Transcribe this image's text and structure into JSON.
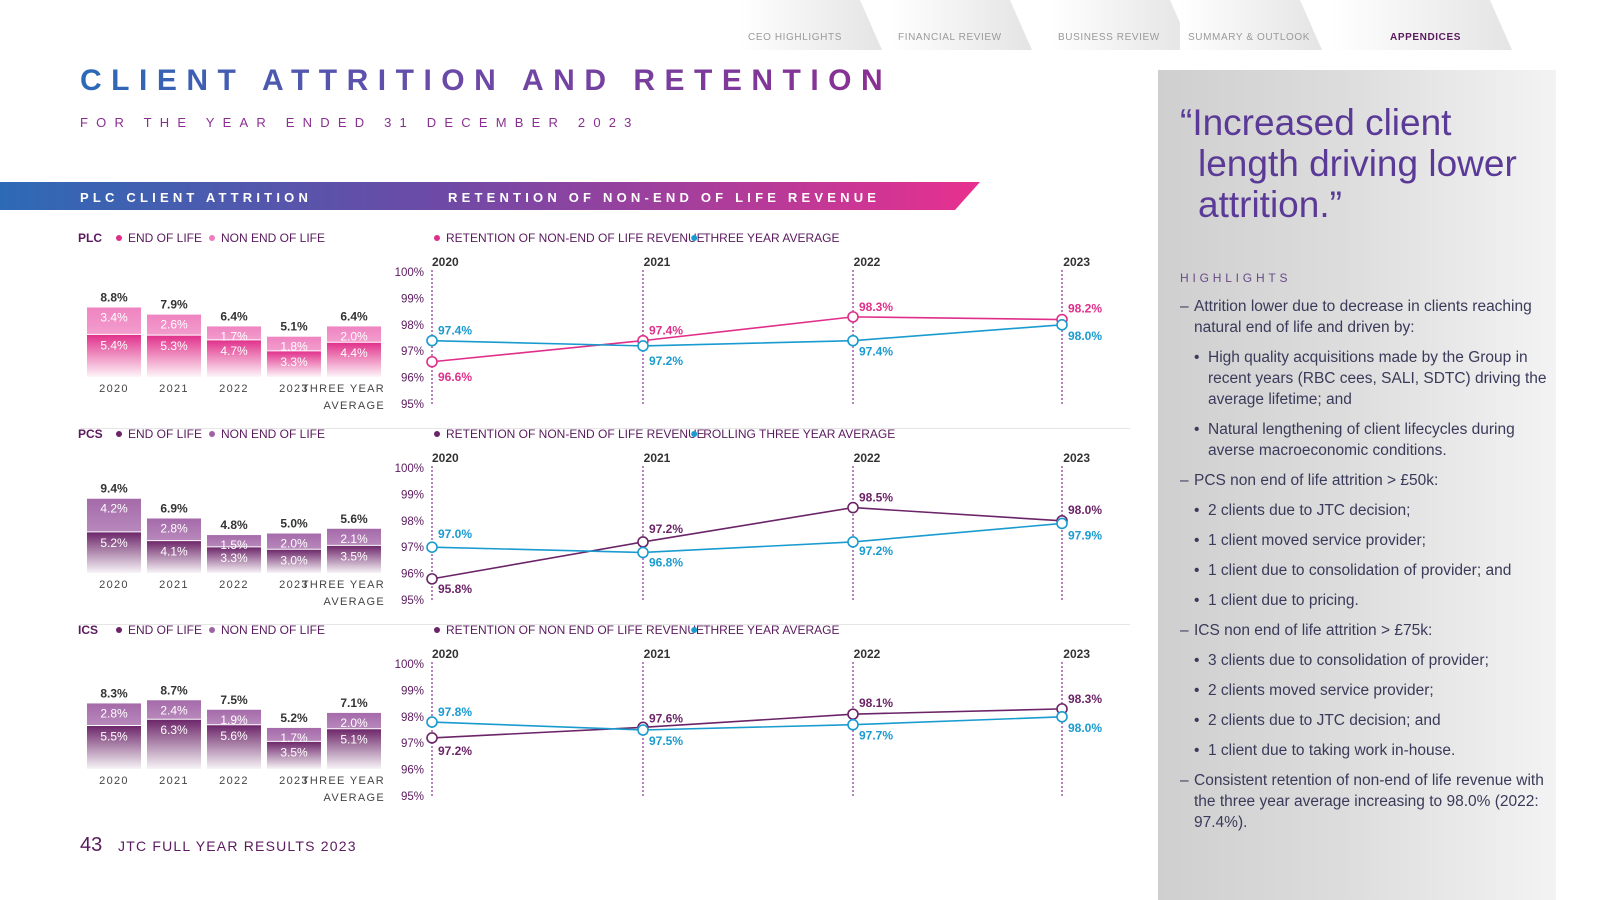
{
  "nav": {
    "tabs": [
      {
        "label": "CEO HIGHLIGHTS",
        "active": false
      },
      {
        "label": "FINANCIAL REVIEW",
        "active": false
      },
      {
        "label": "BUSINESS REVIEW",
        "active": false
      },
      {
        "label": "SUMMARY & OUTLOOK",
        "active": false
      },
      {
        "label": "APPENDICES",
        "active": true
      }
    ]
  },
  "page": {
    "title": "CLIENT ATTRITION AND RETENTION",
    "subtitle": "FOR THE YEAR ENDED 31 DECEMBER 2023",
    "banner_left": "PLC CLIENT ATTRITION",
    "banner_right": "RETENTION OF NON-END OF LIFE REVENUE",
    "footer_page": "43",
    "footer_text": "JTC FULL YEAR RESULTS 2023"
  },
  "colors": {
    "plc_eol": "#e02f8a",
    "plc_neol": "#ee7dbd",
    "pcs_eol": "#6b2468",
    "pcs_neol": "#a062a5",
    "ics_eol": "#6b2468",
    "ics_neol": "#a062a5",
    "average": "#1a9bd0"
  },
  "panel": {
    "quote": "“Increased client length driving lower attrition.”",
    "highlights_heading": "HIGHLIGHTS",
    "bullets": [
      {
        "level": 1,
        "text": "Attrition lower due to decrease in clients reaching natural end of life and driven by:"
      },
      {
        "level": 2,
        "text": "High quality acquisitions made by the Group in recent years (RBC cees, SALI, SDTC) driving the average lifetime; and"
      },
      {
        "level": 2,
        "text": "Natural lengthening of client lifecycles during averse macroeconomic conditions."
      },
      {
        "level": 1,
        "text": "PCS non end of life attrition > £50k:"
      },
      {
        "level": 2,
        "text": "2 clients due to JTC decision;"
      },
      {
        "level": 2,
        "text": "1 client moved service provider;"
      },
      {
        "level": 2,
        "text": "1 client due to consolidation of provider; and"
      },
      {
        "level": 2,
        "text": "1 client due to pricing."
      },
      {
        "level": 1,
        "text": "ICS non end of life attrition > £75k:"
      },
      {
        "level": 2,
        "text": "3 clients due to consolidation of provider;"
      },
      {
        "level": 2,
        "text": "2 clients moved service provider;"
      },
      {
        "level": 2,
        "text": "2 clients due to JTC decision; and"
      },
      {
        "level": 2,
        "text": "1 client due to taking work in-house."
      },
      {
        "level": 1,
        "text": "Consistent retention of non-end of life revenue with the three year average increasing to 98.0% (2022: 97.4%)."
      }
    ]
  },
  "chart_data": [
    {
      "id": "plc",
      "type": "bar",
      "stacked": true,
      "segment": "PLC",
      "legend": [
        "END OF LIFE",
        "NON END OF LIFE"
      ],
      "categories": [
        "2020",
        "2021",
        "2022",
        "2023",
        "THREE YEAR AVERAGE"
      ],
      "category_lines": [
        [
          "2020"
        ],
        [
          "2021"
        ],
        [
          "2022"
        ],
        [
          "2023"
        ],
        [
          "THREE YEAR",
          "AVERAGE"
        ]
      ],
      "series": [
        {
          "name": "END OF LIFE",
          "values": [
            5.4,
            5.3,
            4.7,
            3.3,
            4.4
          ],
          "labels": [
            "5.4%",
            "5.3%",
            "4.7%",
            "3.3%",
            "4.4%"
          ]
        },
        {
          "name": "NON END OF LIFE",
          "values": [
            3.4,
            2.6,
            1.7,
            1.8,
            2.0
          ],
          "labels": [
            "3.4%",
            "2.6%",
            "1.7%",
            "1.8%",
            "2.0%"
          ]
        }
      ],
      "totals": [
        "8.8%",
        "7.9%",
        "6.4%",
        "5.1%",
        "6.4%"
      ],
      "ylim": [
        0,
        10
      ]
    },
    {
      "id": "plc_ret",
      "type": "line",
      "legend": [
        "RETENTION OF NON-END OF LIFE REVENUE",
        "THREE YEAR AVERAGE"
      ],
      "x": [
        "2020",
        "2021",
        "2022",
        "2023"
      ],
      "y_ticks": [
        "100%",
        "99%",
        "98%",
        "97%",
        "96%",
        "95%"
      ],
      "ylim": [
        95,
        100
      ],
      "series": [
        {
          "name": "RETENTION OF NON-END OF LIFE REVENUE",
          "values": [
            96.6,
            97.4,
            98.3,
            98.2
          ],
          "labels": [
            "96.6%",
            "97.4%",
            "98.3%",
            "98.2%"
          ]
        },
        {
          "name": "THREE YEAR AVERAGE",
          "values": [
            97.4,
            97.2,
            97.4,
            98.0
          ],
          "labels": [
            "97.4%",
            "97.2%",
            "97.4%",
            "98.0%"
          ]
        }
      ]
    },
    {
      "id": "pcs",
      "type": "bar",
      "stacked": true,
      "segment": "PCS",
      "legend": [
        "END OF LIFE",
        "NON END OF LIFE"
      ],
      "categories": [
        "2020",
        "2021",
        "2022",
        "2023",
        "THREE YEAR AVERAGE"
      ],
      "category_lines": [
        [
          "2020"
        ],
        [
          "2021"
        ],
        [
          "2022"
        ],
        [
          "2023"
        ],
        [
          "THREE YEAR",
          "AVERAGE"
        ]
      ],
      "series": [
        {
          "name": "END OF LIFE",
          "values": [
            5.2,
            4.1,
            3.3,
            3.0,
            3.5
          ],
          "labels": [
            "5.2%",
            "4.1%",
            "3.3%",
            "3.0%",
            "3.5%"
          ]
        },
        {
          "name": "NON END OF LIFE",
          "values": [
            4.2,
            2.8,
            1.5,
            2.0,
            2.1
          ],
          "labels": [
            "4.2%",
            "2.8%",
            "1.5%",
            "2.0%",
            "2.1%"
          ]
        }
      ],
      "totals": [
        "9.4%",
        "6.9%",
        "4.8%",
        "5.0%",
        "5.6%"
      ],
      "ylim": [
        0,
        10
      ]
    },
    {
      "id": "pcs_ret",
      "type": "line",
      "legend": [
        "RETENTION OF NON-END OF LIFE REVENUE",
        "ROLLING THREE YEAR AVERAGE"
      ],
      "x": [
        "2020",
        "2021",
        "2022",
        "2023"
      ],
      "y_ticks": [
        "100%",
        "99%",
        "98%",
        "97%",
        "96%",
        "95%"
      ],
      "ylim": [
        95,
        100
      ],
      "series": [
        {
          "name": "RETENTION OF NON-END OF LIFE REVENUE",
          "values": [
            95.8,
            97.2,
            98.5,
            98.0
          ],
          "labels": [
            "95.8%",
            "97.2%",
            "98.5%",
            "98.0%"
          ]
        },
        {
          "name": "ROLLING THREE YEAR AVERAGE",
          "values": [
            97.0,
            96.8,
            97.2,
            97.9
          ],
          "labels": [
            "97.0%",
            "96.8%",
            "97.2%",
            "97.9%"
          ]
        }
      ]
    },
    {
      "id": "ics",
      "type": "bar",
      "stacked": true,
      "segment": "ICS",
      "legend": [
        "END OF LIFE",
        "NON END OF LIFE"
      ],
      "categories": [
        "2020",
        "2021",
        "2022",
        "2023",
        "THREE YEAR AVERAGE"
      ],
      "category_lines": [
        [
          "2020"
        ],
        [
          "2021"
        ],
        [
          "2022"
        ],
        [
          "2023"
        ],
        [
          "THREE YEAR",
          "AVERAGE"
        ]
      ],
      "series": [
        {
          "name": "END OF LIFE",
          "values": [
            5.5,
            6.3,
            5.6,
            3.5,
            5.1
          ],
          "labels": [
            "5.5%",
            "6.3%",
            "5.6%",
            "3.5%",
            "5.1%"
          ]
        },
        {
          "name": "NON END OF LIFE",
          "values": [
            2.8,
            2.4,
            1.9,
            1.7,
            2.0
          ],
          "labels": [
            "2.8%",
            "2.4%",
            "1.9%",
            "1.7%",
            "2.0%"
          ]
        }
      ],
      "totals": [
        "8.3%",
        "8.7%",
        "7.5%",
        "5.2%",
        "7.1%"
      ],
      "ylim": [
        0,
        10
      ]
    },
    {
      "id": "ics_ret",
      "type": "line",
      "legend": [
        "RETENTION OF NON END OF LIFE REVENUE",
        "THREE YEAR AVERAGE"
      ],
      "x": [
        "2020",
        "2021",
        "2022",
        "2023"
      ],
      "y_ticks": [
        "100%",
        "99%",
        "98%",
        "97%",
        "96%",
        "95%"
      ],
      "ylim": [
        95,
        100
      ],
      "series": [
        {
          "name": "RETENTION OF NON END OF LIFE REVENUE",
          "values": [
            97.2,
            97.6,
            98.1,
            98.3
          ],
          "labels": [
            "97.2%",
            "97.6%",
            "98.1%",
            "98.3%"
          ]
        },
        {
          "name": "THREE YEAR AVERAGE",
          "values": [
            97.8,
            97.5,
            97.7,
            98.0
          ],
          "labels": [
            "97.8%",
            "97.5%",
            "97.7%",
            "98.0%"
          ]
        }
      ]
    }
  ]
}
